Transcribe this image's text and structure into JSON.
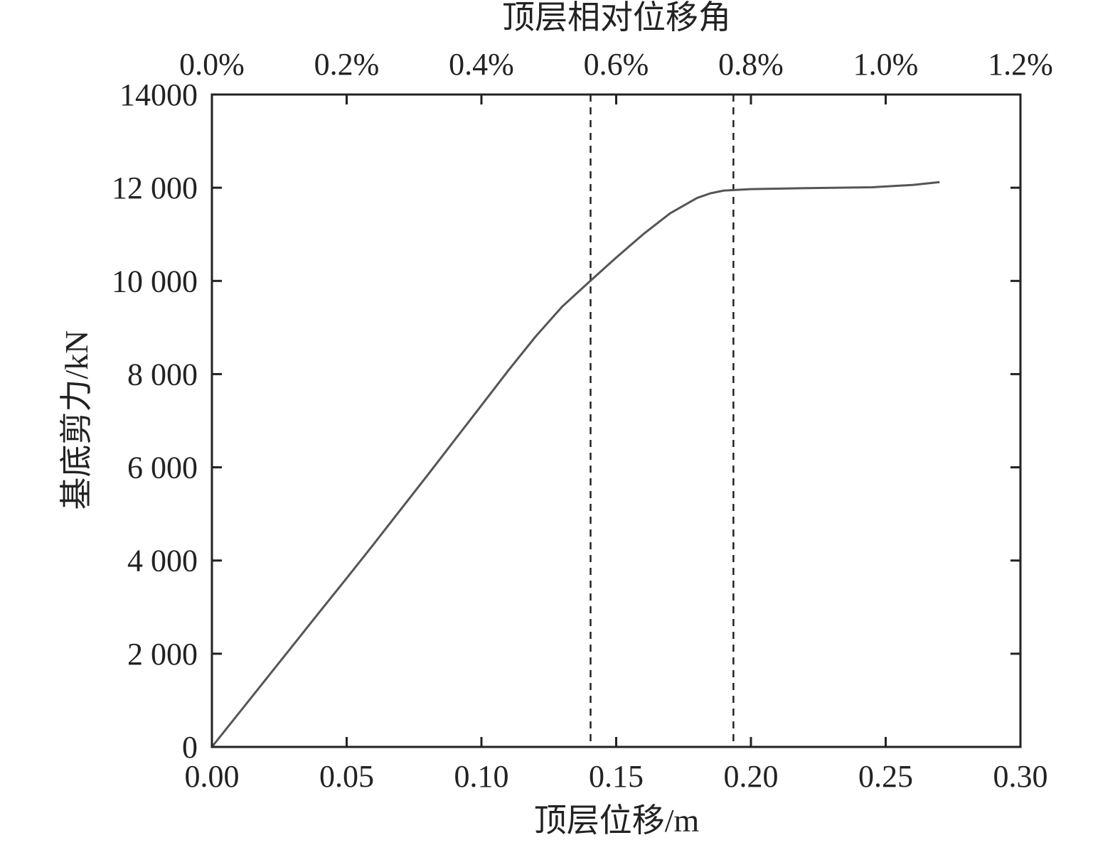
{
  "chart_data": {
    "type": "line",
    "xlabel": "顶层位移/m",
    "ylabel": "基底剪力/kN",
    "top_xlabel": "顶层相对位移角",
    "xlim": [
      0,
      0.3
    ],
    "ylim": [
      0,
      14000
    ],
    "x_ticks": [
      0,
      0.05,
      0.1,
      0.15,
      0.2,
      0.25,
      0.3
    ],
    "x_tick_labels": [
      "0.00",
      "0.05",
      "0.10",
      "0.15",
      "0.20",
      "0.25",
      "0.30"
    ],
    "y_ticks": [
      0,
      2000,
      4000,
      6000,
      8000,
      10000,
      12000,
      14000
    ],
    "y_tick_labels": [
      "0",
      "2 000",
      "4 000",
      "6 000",
      "8 000",
      "10 000",
      "12 000",
      "14000"
    ],
    "top_x_ticks": [
      0,
      0.05,
      0.1,
      0.15,
      0.2,
      0.25,
      0.3
    ],
    "top_x_tick_labels": [
      "0.0%",
      "0.2%",
      "0.4%",
      "0.6%",
      "0.8%",
      "1.0%",
      "1.2%"
    ],
    "grid": false,
    "line_color": "#555555",
    "reference_lines_x": [
      0.1405,
      0.1935
    ],
    "reference_line_style": "dashed",
    "series": [
      {
        "x": [
          0,
          0.01,
          0.02,
          0.03,
          0.04,
          0.05,
          0.06,
          0.07,
          0.08,
          0.09,
          0.1,
          0.11,
          0.12,
          0.13,
          0.14,
          0.15,
          0.16,
          0.17,
          0.18,
          0.185,
          0.19,
          0.2,
          0.22,
          0.245,
          0.26,
          0.27
        ],
        "y": [
          0,
          725,
          1450,
          2175,
          2900,
          3620,
          4350,
          5090,
          5830,
          6580,
          7330,
          8080,
          8800,
          9450,
          9980,
          10500,
          11000,
          11450,
          11780,
          11880,
          11940,
          11970,
          11990,
          12010,
          12060,
          12120
        ]
      }
    ]
  }
}
